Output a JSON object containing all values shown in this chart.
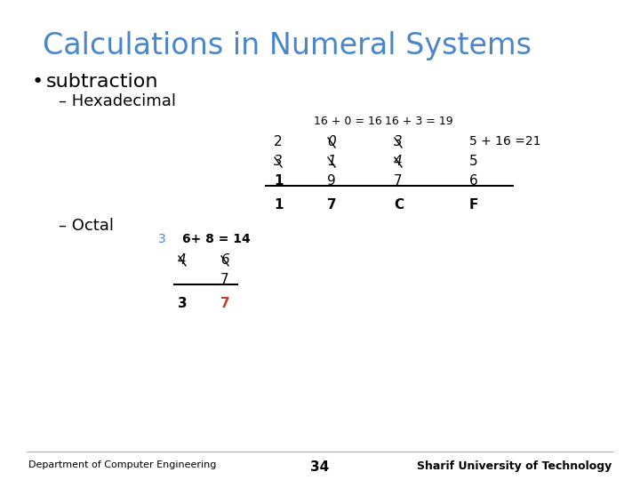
{
  "title": "Calculations in Numeral Systems",
  "title_color": "#4a86c8",
  "bullet": "subtraction",
  "sub1": "– Hexadecimal",
  "sub2": "– Octal",
  "bg_color": "#ffffff",
  "footer_left": "Department of Computer Engineering",
  "footer_center": "34",
  "footer_right": "Sharif University of Technology",
  "hex_header1": "16 + 0 = 16",
  "hex_header2": "16 + 3 = 19",
  "octal_header_blue": "3",
  "octal_header_black": "6+ 8 = 14"
}
